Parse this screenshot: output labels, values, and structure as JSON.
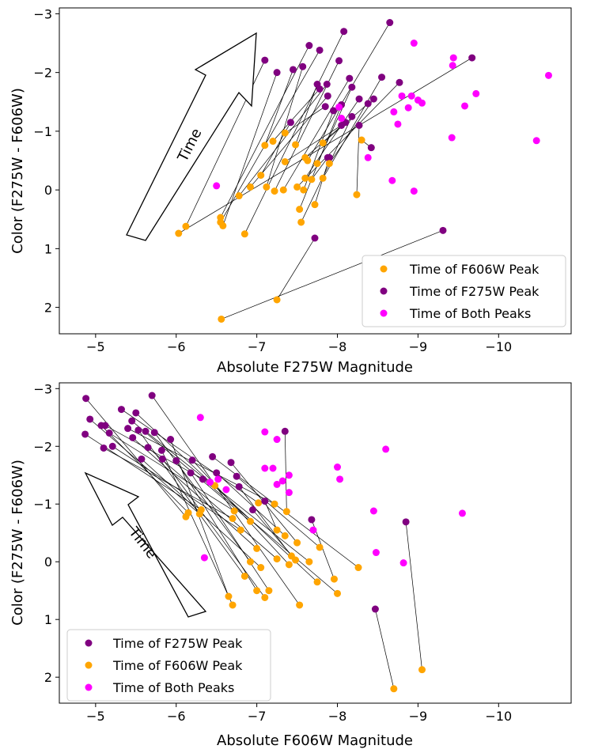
{
  "colors": {
    "orange": "#ffa500",
    "purple": "#800080",
    "magenta": "#ff00ff"
  },
  "chart_data": [
    {
      "type": "scatter",
      "title": "",
      "xlabel": "Absolute F275W Magnitude",
      "ylabel": "Color (F275W - F606W)",
      "xlim": [
        -4.55,
        -10.9
      ],
      "ylim": [
        2.45,
        -3.1
      ],
      "x_ticks": [
        -5,
        -6,
        -7,
        -8,
        -9,
        -10
      ],
      "y_ticks": [
        -3,
        -2,
        -1,
        0,
        1,
        2
      ],
      "x_tick_labels": [
        "−5",
        "−6",
        "−7",
        "−8",
        "−9",
        "−10"
      ],
      "y_tick_labels": [
        "−3",
        "−2",
        "−1",
        "0",
        "1",
        "2"
      ],
      "x_reversed": true,
      "y_reversed": true,
      "legend_placement": "bottom-right",
      "legend": [
        {
          "label": "Time of F606W Peak",
          "color": "#ffa500"
        },
        {
          "label": "Time of F275W Peak",
          "color": "#800080"
        },
        {
          "label": "Time of Both Peaks",
          "color": "#ff00ff"
        }
      ],
      "annotation": "Time",
      "pairs": [
        {
          "f606": [
            -6.03,
            0.74
          ],
          "f275": [
            -9.67,
            -2.25
          ]
        },
        {
          "f606": [
            -6.12,
            0.62
          ],
          "f275": [
            -7.1,
            -2.21
          ]
        },
        {
          "f606": [
            -6.55,
            0.47
          ],
          "f275": [
            -7.65,
            -2.46
          ]
        },
        {
          "f606": [
            -6.55,
            0.55
          ],
          "f275": [
            -7.78,
            -2.38
          ]
        },
        {
          "f606": [
            -6.58,
            0.61
          ],
          "f275": [
            -7.25,
            -2.0
          ]
        },
        {
          "f606": [
            -6.85,
            0.75
          ],
          "f275": [
            -8.08,
            -2.7
          ]
        },
        {
          "f606": [
            -6.56,
            2.2
          ],
          "f275": [
            -9.31,
            0.69
          ]
        },
        {
          "f606": [
            -7.25,
            1.87
          ],
          "f275": [
            -7.72,
            0.82
          ]
        },
        {
          "f606": [
            -6.78,
            0.1
          ],
          "f275": [
            -7.87,
            -1.8
          ]
        },
        {
          "f606": [
            -6.92,
            -0.05
          ],
          "f275": [
            -7.88,
            -1.6
          ]
        },
        {
          "f606": [
            -7.12,
            -0.05
          ],
          "f275": [
            -7.57,
            -2.1
          ]
        },
        {
          "f606": [
            -7.22,
            0.02
          ],
          "f275": [
            -8.02,
            -2.2
          ]
        },
        {
          "f606": [
            -7.33,
            0.0
          ],
          "f275": [
            -8.15,
            -1.9
          ]
        },
        {
          "f606": [
            -7.53,
            0.33
          ],
          "f275": [
            -8.05,
            -1.45
          ]
        },
        {
          "f606": [
            -7.55,
            0.55
          ],
          "f275": [
            -8.18,
            -1.25
          ]
        },
        {
          "f606": [
            -7.58,
            0.0
          ],
          "f275": [
            -7.95,
            -1.35
          ]
        },
        {
          "f606": [
            -7.63,
            -0.5
          ],
          "f275": [
            -8.65,
            -2.85
          ]
        },
        {
          "f606": [
            -7.48,
            -0.77
          ],
          "f275": [
            -7.75,
            -1.8
          ]
        },
        {
          "f606": [
            -7.1,
            -0.76
          ],
          "f275": [
            -7.45,
            -2.05
          ]
        },
        {
          "f606": [
            -7.05,
            -0.25
          ],
          "f275": [
            -7.42,
            -1.15
          ]
        },
        {
          "f606": [
            -7.35,
            -0.48
          ],
          "f275": [
            -8.05,
            -1.1
          ]
        },
        {
          "f606": [
            -7.2,
            -0.83
          ],
          "f275": [
            -7.78,
            -1.72
          ]
        },
        {
          "f606": [
            -7.6,
            -0.2
          ],
          "f275": [
            -8.27,
            -1.55
          ]
        },
        {
          "f606": [
            -7.6,
            -0.55
          ],
          "f275": [
            -8.1,
            -1.15
          ]
        },
        {
          "f606": [
            -7.75,
            -0.45
          ],
          "f275": [
            -8.18,
            -1.75
          ]
        },
        {
          "f606": [
            -7.82,
            -0.2
          ],
          "f275": [
            -8.55,
            -1.92
          ]
        },
        {
          "f606": [
            -7.35,
            -0.97
          ],
          "f275": [
            -7.85,
            -1.42
          ]
        },
        {
          "f606": [
            -7.68,
            -0.18
          ],
          "f275": [
            -7.88,
            -0.55
          ]
        },
        {
          "f606": [
            -7.72,
            0.25
          ],
          "f275": [
            -7.9,
            -0.55
          ]
        },
        {
          "f606": [
            -8.24,
            0.08
          ],
          "f275": [
            -8.27,
            -1.1
          ]
        },
        {
          "f606": [
            -8.3,
            -0.85
          ],
          "f275": [
            -8.42,
            -0.72
          ]
        },
        {
          "f606": [
            -7.82,
            -0.8
          ],
          "f275": [
            -8.38,
            -1.47
          ]
        },
        {
          "f606": [
            -7.5,
            -0.05
          ],
          "f275": [
            -8.77,
            -1.83
          ]
        },
        {
          "f606": [
            -7.9,
            -0.45
          ],
          "f275": [
            -8.45,
            -1.55
          ]
        }
      ],
      "both_peaks": [
        [
          -6.5,
          -0.07
        ],
        [
          -8.05,
          -1.22
        ],
        [
          -8.02,
          -1.41
        ],
        [
          -8.38,
          -0.55
        ],
        [
          -8.7,
          -1.33
        ],
        [
          -8.75,
          -1.12
        ],
        [
          -8.8,
          -1.6
        ],
        [
          -8.88,
          -1.4
        ],
        [
          -8.92,
          -1.6
        ],
        [
          -9.0,
          -1.53
        ],
        [
          -9.05,
          -1.48
        ],
        [
          -8.95,
          -2.5
        ],
        [
          -8.68,
          -0.16
        ],
        [
          -8.95,
          0.02
        ],
        [
          -9.42,
          -0.89
        ],
        [
          -9.43,
          -2.12
        ],
        [
          -9.44,
          -2.25
        ],
        [
          -9.58,
          -1.43
        ],
        [
          -9.72,
          -1.64
        ],
        [
          -10.47,
          -0.84
        ],
        [
          -10.62,
          -1.95
        ]
      ]
    },
    {
      "type": "scatter",
      "title": "",
      "xlabel": "Absolute F606W Magnitude",
      "ylabel": "Color (F275W - F606W)",
      "xlim": [
        -4.55,
        -10.9
      ],
      "ylim": [
        2.45,
        -3.1
      ],
      "x_ticks": [
        -5,
        -6,
        -7,
        -8,
        -9,
        -10
      ],
      "y_ticks": [
        -3,
        -2,
        -1,
        0,
        1,
        2
      ],
      "x_tick_labels": [
        "−5",
        "−6",
        "−7",
        "−8",
        "−9",
        "−10"
      ],
      "y_tick_labels": [
        "−3",
        "−2",
        "−1",
        "0",
        "1",
        "2"
      ],
      "x_reversed": true,
      "y_reversed": true,
      "legend_placement": "bottom-left",
      "legend": [
        {
          "label": "Time of F275W Peak",
          "color": "#800080"
        },
        {
          "label": "Time of F606W Peak",
          "color": "#ffa500"
        },
        {
          "label": "Time of Both Peaks",
          "color": "#ff00ff"
        }
      ],
      "annotation": "Time",
      "pairs": [
        {
          "f275": [
            -4.87,
            -2.21
          ],
          "f606": [
            -6.31,
            -0.9
          ]
        },
        {
          "f275": [
            -4.93,
            -2.47
          ],
          "f606": [
            -6.29,
            -0.83
          ]
        },
        {
          "f275": [
            -4.88,
            -2.83
          ],
          "f606": [
            -6.12,
            -0.78
          ]
        },
        {
          "f275": [
            -5.07,
            -2.36
          ],
          "f606": [
            -6.15,
            -0.85
          ]
        },
        {
          "f275": [
            -5.12,
            -2.36
          ],
          "f606": [
            -6.48,
            -1.32
          ]
        },
        {
          "f275": [
            -5.1,
            -1.97
          ],
          "f606": [
            -6.7,
            -0.75
          ]
        },
        {
          "f275": [
            -5.21,
            -2.0
          ],
          "f606": [
            -6.8,
            -0.55
          ]
        },
        {
          "f275": [
            -5.17,
            -2.23
          ],
          "f606": [
            -6.72,
            -0.88
          ]
        },
        {
          "f275": [
            -5.32,
            -2.64
          ],
          "f606": [
            -7.02,
            -1.02
          ]
        },
        {
          "f275": [
            -5.4,
            -2.31
          ],
          "f606": [
            -7.22,
            -1.0
          ]
        },
        {
          "f275": [
            -5.45,
            -2.44
          ],
          "f606": [
            -6.92,
            -0.7
          ]
        },
        {
          "f275": [
            -5.5,
            -2.58
          ],
          "f606": [
            -7.75,
            0.35
          ]
        },
        {
          "f275": [
            -5.46,
            -2.15
          ],
          "f606": [
            -7.0,
            -0.23
          ]
        },
        {
          "f275": [
            -5.53,
            -2.28
          ],
          "f606": [
            -6.85,
            0.25
          ]
        },
        {
          "f275": [
            -5.62,
            -2.26
          ],
          "f606": [
            -7.65,
            0.0
          ]
        },
        {
          "f275": [
            -5.65,
            -1.98
          ],
          "f606": [
            -7.25,
            -0.05
          ]
        },
        {
          "f275": [
            -5.57,
            -1.78
          ],
          "f606": [
            -7.05,
            0.1
          ]
        },
        {
          "f275": [
            -5.7,
            -2.88
          ],
          "f606": [
            -7.53,
            0.75
          ]
        },
        {
          "f275": [
            -5.73,
            -2.24
          ],
          "f606": [
            -6.92,
            0.0
          ]
        },
        {
          "f275": [
            -5.83,
            -1.78
          ],
          "f606": [
            -7.1,
            0.62
          ]
        },
        {
          "f275": [
            -5.93,
            -2.12
          ],
          "f606": [
            -6.65,
            0.6
          ]
        },
        {
          "f275": [
            -5.82,
            -1.93
          ],
          "f606": [
            -6.7,
            0.75
          ]
        },
        {
          "f275": [
            -6.0,
            -1.75
          ],
          "f606": [
            -7.0,
            0.5
          ]
        },
        {
          "f275": [
            -6.18,
            -1.54
          ],
          "f606": [
            -7.15,
            0.5
          ]
        },
        {
          "f275": [
            -6.2,
            -1.76
          ],
          "f606": [
            -7.4,
            0.05
          ]
        },
        {
          "f275": [
            -6.33,
            -1.43
          ],
          "f606": [
            -8.0,
            0.55
          ]
        },
        {
          "f275": [
            -6.45,
            -1.82
          ],
          "f606": [
            -8.26,
            0.1
          ]
        },
        {
          "f275": [
            -6.5,
            -1.54
          ],
          "f606": [
            -7.35,
            -0.45
          ]
        },
        {
          "f275": [
            -6.68,
            -1.72
          ],
          "f606": [
            -7.5,
            -0.33
          ]
        },
        {
          "f275": [
            -6.75,
            -1.48
          ],
          "f606": [
            -7.78,
            -0.25
          ]
        },
        {
          "f275": [
            -6.78,
            -1.3
          ],
          "f606": [
            -7.43,
            -0.1
          ]
        },
        {
          "f275": [
            -6.95,
            -0.9
          ],
          "f606": [
            -7.48,
            -0.03
          ]
        },
        {
          "f275": [
            -7.35,
            -2.26
          ],
          "f606": [
            -7.37,
            -0.87
          ]
        },
        {
          "f275": [
            -7.68,
            -0.73
          ],
          "f606": [
            -7.96,
            0.3
          ]
        },
        {
          "f275": [
            -8.85,
            -0.69
          ],
          "f606": [
            -9.05,
            1.87
          ]
        },
        {
          "f275": [
            -8.47,
            0.82
          ],
          "f606": [
            -8.7,
            2.2
          ]
        },
        {
          "f275": [
            -7.1,
            -1.05
          ],
          "f606": [
            -7.25,
            -0.55
          ]
        }
      ],
      "both_peaks": [
        [
          -6.3,
          -2.5
        ],
        [
          -6.35,
          -0.07
        ],
        [
          -6.42,
          -1.38
        ],
        [
          -6.62,
          -1.25
        ],
        [
          -6.52,
          -1.43
        ],
        [
          -7.1,
          -2.25
        ],
        [
          -7.25,
          -2.12
        ],
        [
          -7.1,
          -1.62
        ],
        [
          -7.2,
          -1.62
        ],
        [
          -7.25,
          -1.34
        ],
        [
          -7.32,
          -1.4
        ],
        [
          -7.4,
          -1.5
        ],
        [
          -7.4,
          -1.2
        ],
        [
          -7.7,
          -0.55
        ],
        [
          -8.0,
          -1.64
        ],
        [
          -8.03,
          -1.43
        ],
        [
          -8.45,
          -0.88
        ],
        [
          -8.48,
          -0.16
        ],
        [
          -8.82,
          0.02
        ],
        [
          -8.6,
          -1.95
        ],
        [
          -9.55,
          -0.84
        ]
      ]
    }
  ]
}
